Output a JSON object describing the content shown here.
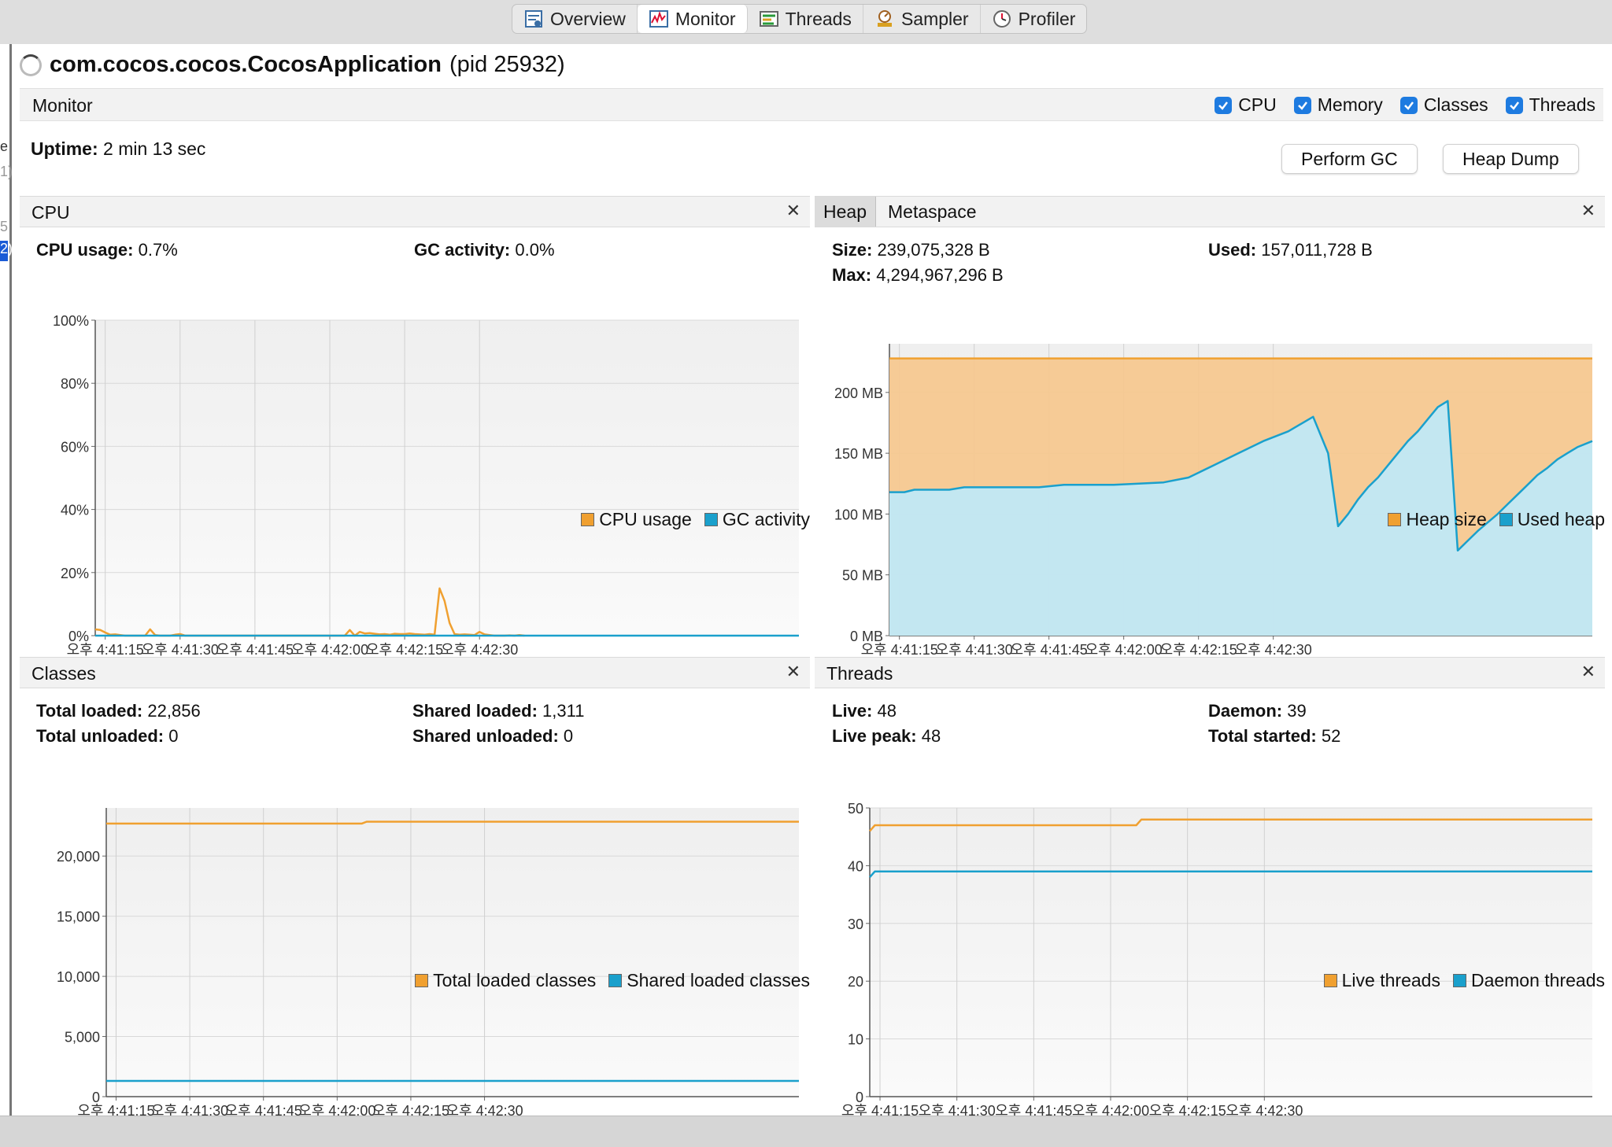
{
  "tabs": [
    "Overview",
    "Monitor",
    "Threads",
    "Sampler",
    "Profiler"
  ],
  "app": {
    "name": "com.cocos.cocos.CocosApplication",
    "pid": "(pid 25932)"
  },
  "monitor": {
    "label": "Monitor",
    "checks": [
      "CPU",
      "Memory",
      "Classes",
      "Threads"
    ]
  },
  "uptime": {
    "label": "Uptime:",
    "value": "2 min 13 sec"
  },
  "buttons": {
    "gc": "Perform GC",
    "dump": "Heap Dump"
  },
  "colors": {
    "orange": "#f0a030",
    "blue": "#1aa0cc",
    "heapFill": "#f6c890",
    "usedFill": "#c0e8f6",
    "active_tab": "#ffffff"
  },
  "left_fragments": [
    "e",
    "1)",
    "5",
    "2)"
  ],
  "cpu": {
    "title": "CPU",
    "usage_label": "CPU usage:",
    "usage": "0.7%",
    "gc_label": "GC activity:",
    "gc": "0.0%"
  },
  "heap": {
    "tab1": "Heap",
    "tab2": "Metaspace",
    "size_label": "Size:",
    "size": "239,075,328 B",
    "used_label": "Used:",
    "used": "157,011,728 B",
    "max_label": "Max:",
    "max": "4,294,967,296 B"
  },
  "classes": {
    "title": "Classes",
    "total_loaded_label": "Total loaded:",
    "total_loaded": "22,856",
    "total_unloaded_label": "Total unloaded:",
    "total_unloaded": "0",
    "shared_loaded_label": "Shared loaded:",
    "shared_loaded": "1,311",
    "shared_unloaded_label": "Shared unloaded:",
    "shared_unloaded": "0"
  },
  "threads": {
    "title": "Threads",
    "live_label": "Live:",
    "live": "48",
    "peak_label": "Live peak:",
    "peak": "48",
    "daemon_label": "Daemon:",
    "daemon": "39",
    "started_label": "Total started:",
    "started": "52"
  },
  "chart_data": [
    {
      "id": "cpu",
      "type": "line",
      "ylim": [
        0,
        100
      ],
      "yticks": [
        0,
        20,
        40,
        60,
        80,
        100
      ],
      "ytick_labels": [
        "0%",
        "20%",
        "40%",
        "60%",
        "80%",
        "100%"
      ],
      "xlim": [
        0,
        141
      ],
      "xticks": [
        2,
        17,
        32,
        47,
        62,
        77
      ],
      "xtick_labels": [
        "오후 4:41:15",
        "오후 4:41:30",
        "오후 4:41:45",
        "오후 4:42:00",
        "오후 4:42:15",
        "오후 4:42:30"
      ],
      "legend": [
        "CPU usage",
        "GC activity"
      ],
      "series": [
        {
          "name": "CPU usage",
          "x": [
            0,
            1,
            2,
            3,
            4,
            5,
            6,
            7,
            8,
            9,
            10,
            11,
            12,
            13,
            14,
            15,
            16,
            17,
            18,
            19,
            20,
            21,
            22,
            23,
            24,
            25,
            26,
            27,
            28,
            29,
            30,
            31,
            32,
            33,
            34,
            35,
            36,
            37,
            38,
            39,
            40,
            41,
            42,
            43,
            44,
            45,
            46,
            47,
            48,
            49,
            50,
            51,
            52,
            53,
            54,
            55,
            56,
            57,
            58,
            59,
            60,
            61,
            62,
            63,
            64,
            65,
            66,
            67,
            68,
            69,
            70,
            71,
            72,
            73,
            74,
            75,
            76,
            77,
            78,
            79,
            80,
            81,
            82,
            83,
            84,
            85,
            86
          ],
          "y": [
            2,
            1.8,
            1,
            0.3,
            0.4,
            0.2,
            0,
            0,
            0,
            0,
            0,
            2,
            0.2,
            0,
            0,
            0,
            0.3,
            0.5,
            0,
            0,
            0,
            0,
            0,
            0,
            0,
            0,
            0,
            0,
            0,
            0,
            0,
            0,
            0,
            0,
            0,
            0,
            0,
            0,
            0,
            0,
            0,
            0,
            0,
            0,
            0,
            0,
            0,
            0,
            0,
            0,
            0,
            1.8,
            0,
            1.2,
            0.7,
            0.8,
            0.6,
            0.4,
            0.5,
            0.3,
            0.6,
            0.5,
            0.5,
            0.7,
            0.5,
            0.4,
            0.3,
            0.5,
            0.3,
            15,
            11,
            4,
            0.5,
            0.3,
            0.4,
            0.3,
            0.2,
            1.2,
            0.4,
            0.2,
            0,
            0,
            0,
            0.1,
            0,
            0.2,
            0
          ]
        },
        {
          "name": "GC activity",
          "x": [
            0,
            141
          ],
          "y": [
            0,
            0
          ]
        }
      ]
    },
    {
      "id": "heap",
      "type": "area",
      "ylim": [
        0,
        240
      ],
      "yticks": [
        0,
        50,
        100,
        150,
        200
      ],
      "ytick_labels": [
        "0 MB",
        "50 MB",
        "100 MB",
        "150 MB",
        "200 MB"
      ],
      "xlim": [
        0,
        141
      ],
      "xticks": [
        2,
        17,
        32,
        47,
        62,
        77
      ],
      "xtick_labels": [
        "오후 4:41:15",
        "오후 4:41:30",
        "오후 4:41:45",
        "오후 4:42:00",
        "오후 4:42:15",
        "오후 4:42:30"
      ],
      "legend": [
        "Heap size",
        "Used heap"
      ],
      "series": [
        {
          "name": "Heap size",
          "x": [
            0,
            141
          ],
          "y": [
            228,
            228
          ]
        },
        {
          "name": "Used heap",
          "x": [
            0,
            3,
            5,
            8,
            12,
            15,
            17,
            20,
            25,
            30,
            35,
            40,
            45,
            50,
            55,
            60,
            65,
            70,
            75,
            80,
            85,
            88,
            90,
            92,
            94,
            96,
            98,
            100,
            102,
            104,
            106,
            108,
            110,
            112,
            114,
            116,
            118,
            120,
            122,
            124,
            126,
            128,
            130,
            132,
            134,
            136,
            138,
            141
          ],
          "y": [
            118,
            118,
            120,
            120,
            120,
            122,
            122,
            122,
            122,
            122,
            124,
            124,
            124,
            125,
            126,
            130,
            140,
            150,
            160,
            168,
            180,
            150,
            90,
            100,
            112,
            122,
            130,
            140,
            150,
            160,
            168,
            178,
            188,
            193,
            70,
            78,
            86,
            93,
            100,
            108,
            116,
            124,
            132,
            138,
            145,
            150,
            155,
            160
          ]
        }
      ]
    },
    {
      "id": "classes",
      "type": "line",
      "ylim": [
        0,
        24000
      ],
      "yticks": [
        0,
        5000,
        10000,
        15000,
        20000
      ],
      "ytick_labels": [
        "0",
        "5,000",
        "10,000",
        "15,000",
        "20,000"
      ],
      "xlim": [
        0,
        141
      ],
      "xticks": [
        2,
        17,
        32,
        47,
        62,
        77
      ],
      "xtick_labels": [
        "오후 4:41:15",
        "오후 4:41:30",
        "오후 4:41:45",
        "오후 4:42:00",
        "오후 4:42:15",
        "오후 4:42:30"
      ],
      "legend": [
        "Total loaded classes",
        "Shared loaded classes"
      ],
      "series": [
        {
          "name": "Total loaded classes",
          "x": [
            0,
            52,
            53,
            141
          ],
          "y": [
            22700,
            22700,
            22856,
            22856
          ]
        },
        {
          "name": "Shared loaded classes",
          "x": [
            0,
            141
          ],
          "y": [
            1311,
            1311
          ]
        }
      ]
    },
    {
      "id": "threads",
      "type": "line",
      "ylim": [
        0,
        50
      ],
      "yticks": [
        0,
        10,
        20,
        30,
        40,
        50
      ],
      "ytick_labels": [
        "0",
        "10",
        "20",
        "30",
        "40",
        "50"
      ],
      "xlim": [
        0,
        141
      ],
      "xticks": [
        2,
        17,
        32,
        47,
        62,
        77
      ],
      "xtick_labels": [
        "오후 4:41:15",
        "오후 4:41:30",
        "오후 4:41:45",
        "오후 4:42:00",
        "오후 4:42:15",
        "오후 4:42:30"
      ],
      "legend": [
        "Live threads",
        "Daemon threads"
      ],
      "series": [
        {
          "name": "Live threads",
          "x": [
            0,
            1,
            2,
            3,
            52,
            53,
            141
          ],
          "y": [
            46,
            47,
            47,
            47,
            47,
            48,
            48
          ]
        },
        {
          "name": "Daemon threads",
          "x": [
            0,
            1,
            2,
            3,
            141
          ],
          "y": [
            38,
            39,
            39,
            39,
            39
          ]
        }
      ]
    }
  ]
}
